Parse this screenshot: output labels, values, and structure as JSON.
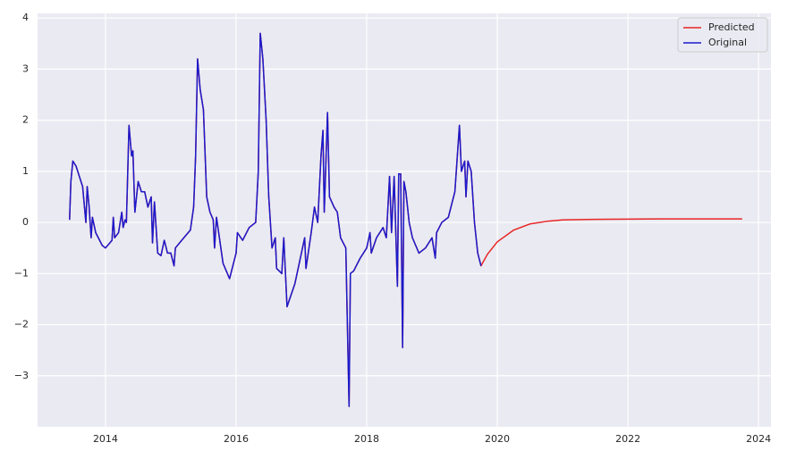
{
  "chart_data": {
    "type": "line",
    "x": [
      2013.45,
      2013.47,
      2013.5,
      2013.55,
      2013.6,
      2013.65,
      2013.7,
      2013.72,
      2013.75,
      2013.78,
      2013.8,
      2013.85,
      2013.95,
      2014.0,
      2014.1,
      2014.12,
      2014.14,
      2014.2,
      2014.25,
      2014.27,
      2014.3,
      2014.32,
      2014.36,
      2014.4,
      2014.42,
      2014.45,
      2014.5,
      2014.55,
      2014.6,
      2014.65,
      2014.7,
      2014.72,
      2014.75,
      2014.8,
      2014.85,
      2014.9,
      2014.95,
      2015.0,
      2015.05,
      2015.07,
      2015.2,
      2015.3,
      2015.35,
      2015.38,
      2015.41,
      2015.45,
      2015.5,
      2015.55,
      2015.6,
      2015.65,
      2015.67,
      2015.7,
      2015.8,
      2015.9,
      2016.0,
      2016.02,
      2016.1,
      2016.2,
      2016.3,
      2016.34,
      2016.37,
      2016.41,
      2016.46,
      2016.5,
      2016.55,
      2016.6,
      2016.62,
      2016.7,
      2016.73,
      2016.78,
      2016.9,
      2017.0,
      2017.05,
      2017.07,
      2017.15,
      2017.2,
      2017.25,
      2017.3,
      2017.33,
      2017.35,
      2017.4,
      2017.43,
      2017.5,
      2017.55,
      2017.6,
      2017.68,
      2017.73,
      2017.75,
      2017.8,
      2017.9,
      2018.0,
      2018.05,
      2018.07,
      2018.15,
      2018.25,
      2018.3,
      2018.35,
      2018.38,
      2018.42,
      2018.47,
      2018.49,
      2018.52,
      2018.55,
      2018.57,
      2018.6,
      2018.65,
      2018.7,
      2018.8,
      2018.9,
      2019.0,
      2019.05,
      2019.07,
      2019.15,
      2019.25,
      2019.35,
      2019.42,
      2019.45,
      2019.5,
      2019.52,
      2019.55,
      2019.6,
      2019.65,
      2019.7,
      2019.75,
      2019.85,
      2020.0,
      2020.25,
      2020.5,
      2020.75,
      2021.0,
      2021.5,
      2022.0,
      2022.5,
      2023.0,
      2023.75
    ],
    "series": [
      {
        "name": "Predicted",
        "color": "#e82424",
        "values": [
          0.05,
          0.8,
          1.2,
          1.1,
          0.9,
          0.7,
          0.0,
          0.7,
          0.3,
          -0.3,
          0.1,
          -0.2,
          -0.45,
          -0.5,
          -0.35,
          0.1,
          -0.3,
          -0.2,
          0.2,
          -0.1,
          0.05,
          0.0,
          1.9,
          1.3,
          1.4,
          0.2,
          0.8,
          0.6,
          0.6,
          0.3,
          0.5,
          -0.4,
          0.4,
          -0.6,
          -0.65,
          -0.35,
          -0.6,
          -0.6,
          -0.85,
          -0.5,
          -0.3,
          -0.15,
          0.3,
          1.3,
          3.2,
          2.6,
          2.2,
          0.5,
          0.2,
          0.05,
          -0.5,
          0.1,
          -0.8,
          -1.1,
          -0.6,
          -0.2,
          -0.35,
          -0.1,
          0.0,
          1.0,
          3.7,
          3.2,
          2.0,
          0.5,
          -0.5,
          -0.3,
          -0.9,
          -1.0,
          -0.3,
          -1.65,
          -1.2,
          -0.6,
          -0.3,
          -0.9,
          -0.2,
          0.3,
          0.0,
          1.3,
          1.8,
          0.2,
          2.15,
          0.5,
          0.3,
          0.2,
          -0.3,
          -0.5,
          -3.6,
          -1.0,
          -0.95,
          -0.7,
          -0.5,
          -0.2,
          -0.6,
          -0.3,
          -0.1,
          -0.3,
          0.9,
          -0.2,
          0.9,
          -1.25,
          0.95,
          0.95,
          -2.45,
          0.8,
          0.6,
          0.0,
          -0.3,
          -0.6,
          -0.5,
          -0.3,
          -0.7,
          -0.2,
          0.0,
          0.1,
          0.6,
          1.9,
          1.0,
          1.2,
          0.5,
          1.2,
          1.0,
          0.0,
          -0.6,
          -0.85,
          -0.62,
          -0.38,
          -0.15,
          -0.03,
          0.02,
          0.05,
          0.06,
          0.065,
          0.07,
          0.07,
          0.07
        ]
      },
      {
        "name": "Original",
        "color": "#1a1acc",
        "values": [
          0.05,
          0.8,
          1.2,
          1.1,
          0.9,
          0.7,
          0.0,
          0.7,
          0.3,
          -0.3,
          0.1,
          -0.2,
          -0.45,
          -0.5,
          -0.35,
          0.1,
          -0.3,
          -0.2,
          0.2,
          -0.1,
          0.05,
          0.0,
          1.9,
          1.3,
          1.4,
          0.2,
          0.8,
          0.6,
          0.6,
          0.3,
          0.5,
          -0.4,
          0.4,
          -0.6,
          -0.65,
          -0.35,
          -0.6,
          -0.6,
          -0.85,
          -0.5,
          -0.3,
          -0.15,
          0.3,
          1.3,
          3.2,
          2.6,
          2.2,
          0.5,
          0.2,
          0.05,
          -0.5,
          0.1,
          -0.8,
          -1.1,
          -0.6,
          -0.2,
          -0.35,
          -0.1,
          0.0,
          1.0,
          3.7,
          3.2,
          2.0,
          0.5,
          -0.5,
          -0.3,
          -0.9,
          -1.0,
          -0.3,
          -1.65,
          -1.2,
          -0.6,
          -0.3,
          -0.9,
          -0.2,
          0.3,
          0.0,
          1.3,
          1.8,
          0.2,
          2.15,
          0.5,
          0.3,
          0.2,
          -0.3,
          -0.5,
          -3.6,
          -1.0,
          -0.95,
          -0.7,
          -0.5,
          -0.2,
          -0.6,
          -0.3,
          -0.1,
          -0.3,
          0.9,
          -0.2,
          0.9,
          -1.25,
          0.95,
          0.95,
          -2.45,
          0.8,
          0.6,
          0.0,
          -0.3,
          -0.6,
          -0.5,
          -0.3,
          -0.7,
          -0.2,
          0.0,
          0.1,
          0.6,
          1.9,
          1.0,
          1.2,
          0.5,
          1.2,
          1.0,
          0.0,
          -0.6,
          -0.85,
          null,
          null,
          null,
          null,
          null,
          null,
          null,
          null,
          null,
          null,
          null
        ]
      }
    ],
    "xlim": [
      2012.96,
      2024.19
    ],
    "xticks": [
      2014,
      2016,
      2018,
      2020,
      2022,
      2024
    ],
    "ylim": [
      -4.0,
      4.09
    ],
    "yticks": [
      {
        "value": -3,
        "label": "−3"
      },
      {
        "value": -2,
        "label": "−2"
      },
      {
        "value": -1,
        "label": "−1"
      },
      0,
      1,
      2,
      3,
      4
    ],
    "grid": true,
    "legend": "upper right"
  }
}
